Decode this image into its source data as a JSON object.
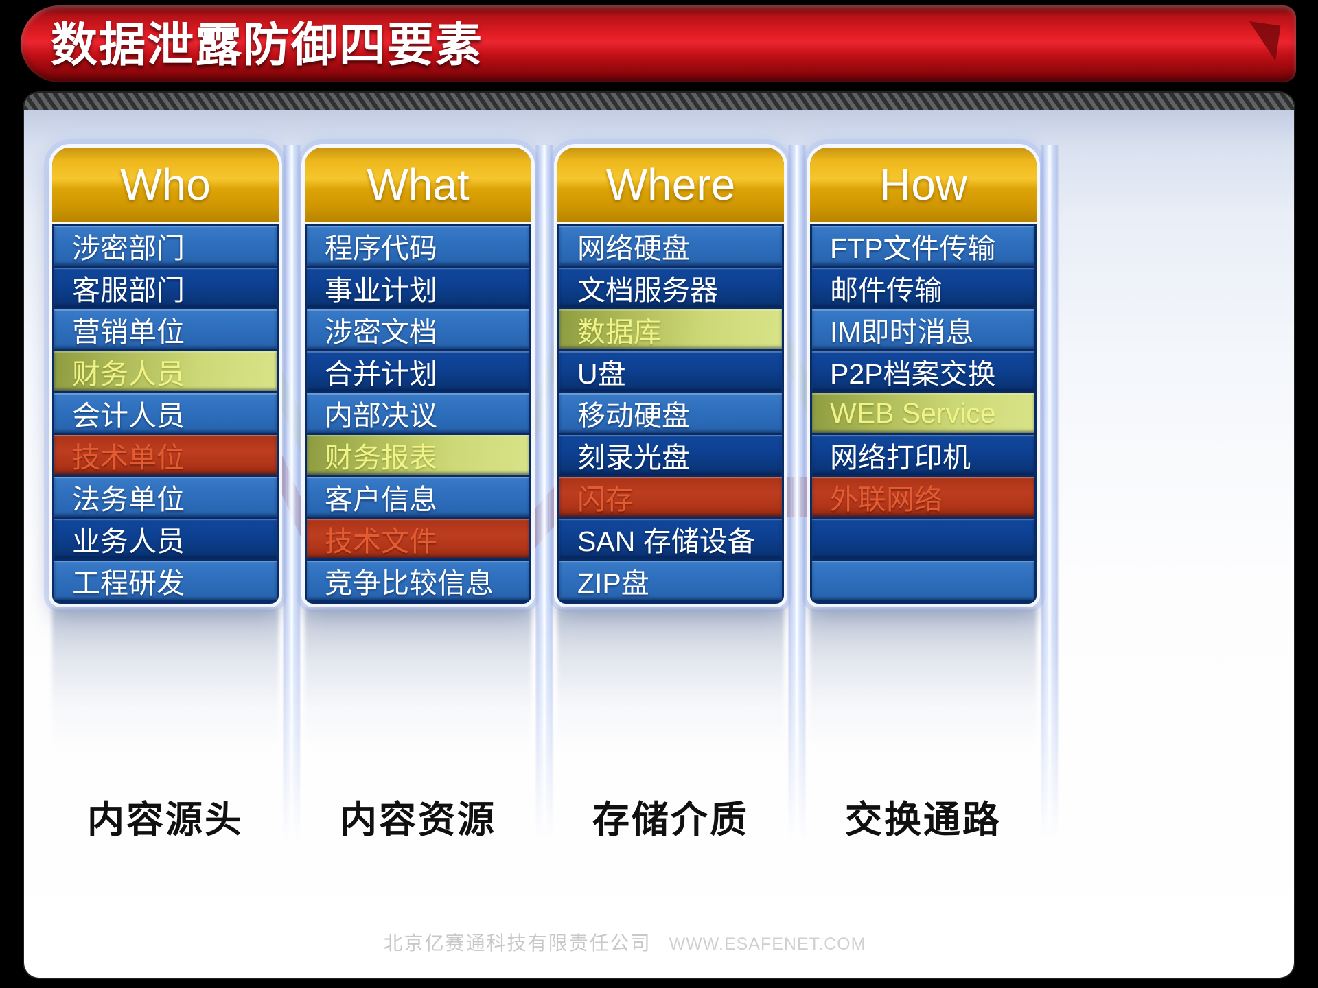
{
  "slide": {
    "title": "数据泄露防御四要素",
    "footer_company": "北京亿赛通科技有限责任公司",
    "footer_website": "WWW.ESAFENET.COM"
  },
  "columns": [
    {
      "header": "Who",
      "category": "内容源头",
      "rows": [
        {
          "label": "涉密部门",
          "style": "light"
        },
        {
          "label": "客服部门",
          "style": "navy"
        },
        {
          "label": "营销单位",
          "style": "light"
        },
        {
          "label": "财务人员",
          "style": "green"
        },
        {
          "label": "会计人员",
          "style": "light"
        },
        {
          "label": "技术单位",
          "style": "red"
        },
        {
          "label": "法务单位",
          "style": "light"
        },
        {
          "label": "业务人员",
          "style": "navy"
        },
        {
          "label": "工程研发",
          "style": "light"
        }
      ]
    },
    {
      "header": "What",
      "category": "内容资源",
      "rows": [
        {
          "label": "程序代码",
          "style": "light"
        },
        {
          "label": "事业计划",
          "style": "navy"
        },
        {
          "label": "涉密文档",
          "style": "light"
        },
        {
          "label": "合并计划",
          "style": "navy"
        },
        {
          "label": "内部决议",
          "style": "light"
        },
        {
          "label": "财务报表",
          "style": "green"
        },
        {
          "label": "客户信息",
          "style": "light"
        },
        {
          "label": "技术文件",
          "style": "red"
        },
        {
          "label": "竞争比较信息",
          "style": "light"
        }
      ]
    },
    {
      "header": "Where",
      "category": "存储介质",
      "rows": [
        {
          "label": "网络硬盘",
          "style": "light"
        },
        {
          "label": "文档服务器",
          "style": "navy"
        },
        {
          "label": "数据库",
          "style": "green"
        },
        {
          "label": "U盘",
          "style": "navy"
        },
        {
          "label": "移动硬盘",
          "style": "light"
        },
        {
          "label": "刻录光盘",
          "style": "navy"
        },
        {
          "label": "闪存",
          "style": "red"
        },
        {
          "label": "SAN 存储设备",
          "style": "navy"
        },
        {
          "label": "ZIP盘",
          "style": "light"
        }
      ]
    },
    {
      "header": "How",
      "category": "交换通路",
      "rows": [
        {
          "label": "FTP文件传输",
          "style": "light"
        },
        {
          "label": "邮件传输",
          "style": "navy"
        },
        {
          "label": "IM即时消息",
          "style": "light"
        },
        {
          "label": "P2P档案交换",
          "style": "navy"
        },
        {
          "label": "WEB Service",
          "style": "green"
        },
        {
          "label": "网络打印机",
          "style": "navy"
        },
        {
          "label": "外联网络",
          "style": "red"
        },
        {
          "label": "",
          "style": "navy"
        },
        {
          "label": "",
          "style": "light"
        }
      ]
    }
  ],
  "connections": [
    {
      "from_col": 0,
      "from_row": 3,
      "to_col": 1,
      "to_row": 5,
      "color": "yellow",
      "from_label": "财务人员",
      "to_label": "财务报表"
    },
    {
      "from_col": 0,
      "from_row": 5,
      "to_col": 1,
      "to_row": 7,
      "color": "red",
      "from_label": "技术单位",
      "to_label": "技术文件"
    },
    {
      "from_col": 1,
      "from_row": 5,
      "to_col": 2,
      "to_row": 2,
      "color": "yellow",
      "from_label": "财务报表",
      "to_label": "数据库"
    },
    {
      "from_col": 1,
      "from_row": 7,
      "to_col": 2,
      "to_row": 6,
      "color": "red",
      "from_label": "技术文件",
      "to_label": "闪存"
    },
    {
      "from_col": 2,
      "from_row": 2,
      "to_col": 3,
      "to_row": 4,
      "color": "yellow",
      "from_label": "数据库",
      "to_label": "WEB Service"
    },
    {
      "from_col": 2,
      "from_row": 6,
      "to_col": 3,
      "to_row": 6,
      "color": "red",
      "from_label": "闪存",
      "to_label": "外联网络"
    }
  ],
  "colors": {
    "banner_red": "#e41d24",
    "header_gold": "#eab412",
    "row_navy": "#0d4091",
    "row_light_blue": "#2e6fbd",
    "row_green": "#c3cf6b",
    "row_red": "#b53a1e",
    "green_text": "#f0f388",
    "red_text": "#e35b31",
    "ribbon_yellow": "#e7ea8c",
    "ribbon_red": "#c13a1d"
  }
}
